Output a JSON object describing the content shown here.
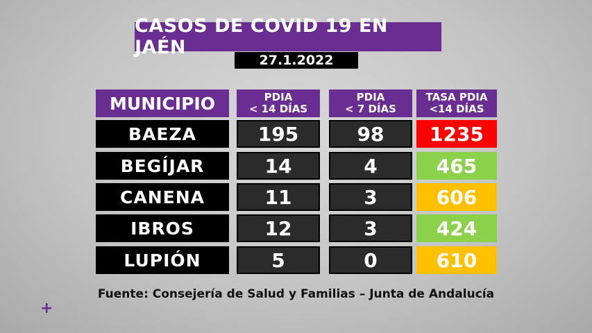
{
  "title": "CASOS DE COVID 19 EN JAÉN",
  "date": "27.1.2022",
  "headers": {
    "municipio": "MUNICIPIO",
    "pdia14_line1": "PDIA",
    "pdia14_line2": "< 14 DÍAS",
    "pdia7_line1": "PDIA",
    "pdia7_line2": "< 7 DÍAS",
    "tasa_line1": "TASA PDIA",
    "tasa_line2": "<14 DÍAS"
  },
  "rows": [
    {
      "municipio": "BAEZA",
      "pdia14": "195",
      "pdia7": "98",
      "tasa": "1235",
      "tasa_color": "#ff0000"
    },
    {
      "municipio": "BEGÍJAR",
      "pdia14": "14",
      "pdia7": "4",
      "tasa": "465",
      "tasa_color": "#8bd14a"
    },
    {
      "municipio": "CANENA",
      "pdia14": "11",
      "pdia7": "3",
      "tasa": "606",
      "tasa_color": "#ffc000"
    },
    {
      "municipio": "IBROS",
      "pdia14": "12",
      "pdia7": "3",
      "tasa": "424",
      "tasa_color": "#8bd14a"
    },
    {
      "municipio": "LUPIÓN",
      "pdia14": "5",
      "pdia7": "0",
      "tasa": "610",
      "tasa_color": "#ffc000"
    }
  ],
  "source": "Fuente: Consejería de Salud y Familias – Junta de Andalucía",
  "plus_icon": "plus-icon"
}
